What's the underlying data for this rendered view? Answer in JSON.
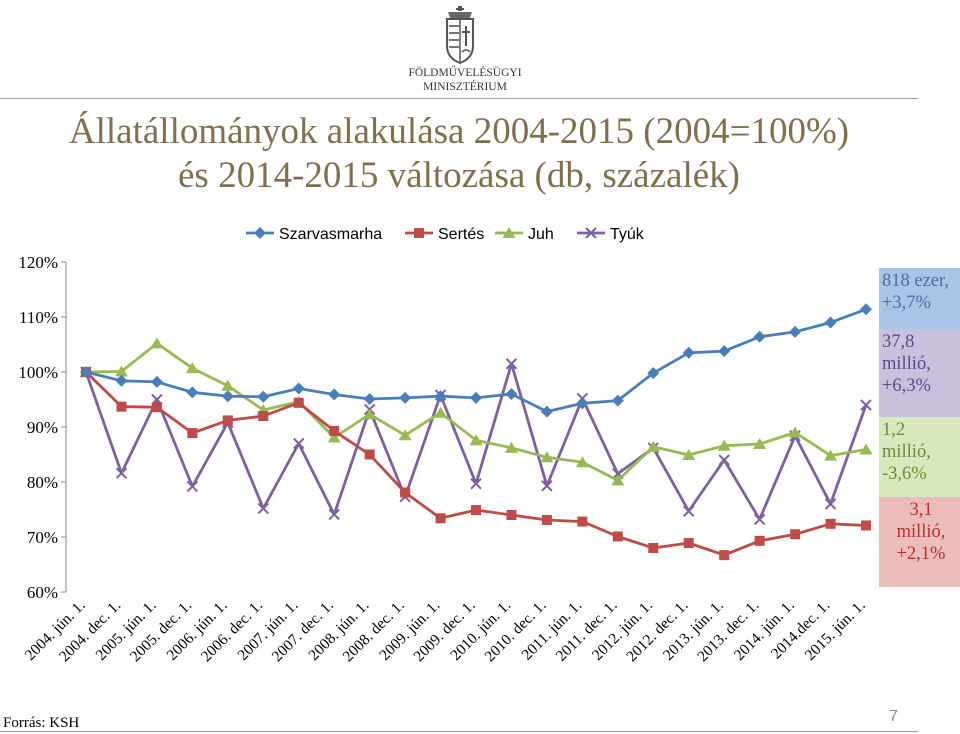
{
  "header": {
    "org_name_line1": "FÖLDMŰVELÉSÜGYI",
    "org_name_line2": "MINISZTÉRIUM",
    "title_line1": "Állatállományok alakulása 2004-2015 (2004=100%)",
    "title_line2": "és 2014-2015 változása (db, százalék)"
  },
  "chart_data": {
    "type": "line",
    "categories": [
      "2004. jún. 1.",
      "2004. dec. 1.",
      "2005. jún. 1.",
      "2005. dec. 1.",
      "2006. jún. 1.",
      "2006. dec. 1.",
      "2007. jún. 1.",
      "2007. dec. 1.",
      "2008. jún. 1.",
      "2008. dec. 1.",
      "2009. jún. 1.",
      "2009. dec. 1.",
      "2010. jún. 1.",
      "2010. dec. 1.",
      "2011. jún. 1.",
      "2011. dec. 1.",
      "2012. jún. 1.",
      "2012. dec. 1.",
      "2013. jún. 1.",
      "2013. dec. 1.",
      "2014. jún. 1.",
      "2014.dec. 1.",
      "2015. jún. 1."
    ],
    "x_tick_labels": [
      "2004. jún. 1.",
      "2004. dec. 1.",
      "2005. jún. 1.",
      "2005. dec. 1.",
      "2006. jún. 1.",
      "2006. dec. 1.",
      "2007. jún. 1.",
      "2007. dec. 1.",
      "2008. jún. 1.",
      "2008. dec. 1.",
      "2009. jún. 1.",
      "2009. dec. 1.",
      "2010. jún. 1.",
      "2010. dec. 1.",
      "2011. jún. 1.",
      "2011. dec. 1.",
      "2012. jún. 1.",
      "2012. dec. 1.",
      "2013. jún. 1.",
      "2013. dec. 1.",
      "2014. jún. 1.",
      "2014.dec. 1.",
      "2015. jún. 1."
    ],
    "y_tick_labels": [
      "60%",
      "70%",
      "80%",
      "90%",
      "100%",
      "110%",
      "120%"
    ],
    "y_ticks": [
      60,
      70,
      80,
      90,
      100,
      110,
      120
    ],
    "ylim": [
      60,
      120
    ],
    "grid": false,
    "legend_position": "top",
    "series": [
      {
        "name": "Szarvasmarha",
        "color": "#4a7ebb",
        "marker": "diamond",
        "values": [
          100,
          98.4,
          98.2,
          96.3,
          95.6,
          95.5,
          97,
          95.9,
          95.1,
          95.3,
          95.6,
          95.3,
          96,
          92.8,
          94.3,
          94.8,
          99.8,
          103.5,
          103.8,
          106.4,
          107.3,
          109,
          111.4
        ]
      },
      {
        "name": "Sertés",
        "color": "#be4b48",
        "marker": "square",
        "values": [
          100,
          93.7,
          93.6,
          88.9,
          91.2,
          92,
          94.4,
          89.3,
          85,
          78.1,
          73.4,
          74.9,
          74,
          73.1,
          72.8,
          70.1,
          68,
          68.9,
          66.7,
          69.3,
          70.5,
          72.4,
          72.1
        ]
      },
      {
        "name": "Juh",
        "color": "#98b954",
        "marker": "triangle",
        "values": [
          100,
          100.1,
          105.2,
          100.7,
          97.5,
          93.1,
          94.6,
          88.1,
          92.3,
          88.5,
          92.6,
          87.6,
          86.2,
          84.5,
          83.6,
          80.3,
          86.4,
          84.9,
          86.6,
          86.9,
          89,
          84.8,
          85.9
        ]
      },
      {
        "name": "Tyúk",
        "color": "#7d60a0",
        "marker": "x",
        "values": [
          100,
          81.6,
          95,
          79.2,
          90.8,
          75.2,
          87,
          74.1,
          93.2,
          77.3,
          95.8,
          79.7,
          101.5,
          79.3,
          95.2,
          81.5,
          86.2,
          74.7,
          84,
          73.2,
          88.4,
          76,
          94
        ]
      }
    ]
  },
  "side_boxes": [
    {
      "line1": "818 ezer,",
      "line2": "+3,7%",
      "bg": "#a9c4e6",
      "color": "#4a6ea2"
    },
    {
      "line1": "37,8",
      "line2": "millió,",
      "line3": "+6,3%",
      "bg": "#c8c0dc",
      "color": "#5b4a86"
    },
    {
      "line1": "1,2",
      "line2": "millió,",
      "line3": "-3,6%",
      "bg": "#d9e8bc",
      "color": "#6b8a38"
    },
    {
      "line1": "3,1",
      "line2": "millió,",
      "line3": "+2,1%",
      "bg": "#ecbcbb",
      "color": "#b8302b"
    }
  ],
  "footer": {
    "source": "Forrás: KSH",
    "page_number": "7"
  }
}
